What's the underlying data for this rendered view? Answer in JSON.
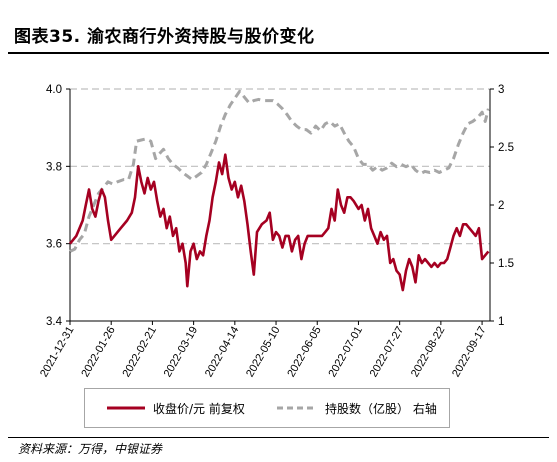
{
  "header": {
    "title": "图表35. 渝农商行外资持股与股价变化"
  },
  "footer": {
    "source": "资料来源：万得，中银证券"
  },
  "colors": {
    "price": "#A50021",
    "holding": "#A6A6A6",
    "grid": "#BFBFBF"
  },
  "chart_data": {
    "type": "line",
    "title": "",
    "x_tick_labels": [
      "2021-12-31",
      "2022-01-26",
      "2022-02-21",
      "2022-03-19",
      "2022-04-14",
      "2022-05-10",
      "2022-06-05",
      "2022-07-01",
      "2022-07-27",
      "2022-08-22",
      "2022-09-17"
    ],
    "y_left": {
      "ylim": [
        3.4,
        4.0
      ],
      "ticks": [
        "3.4",
        "3.6",
        "3.8",
        "4.0"
      ]
    },
    "y_right": {
      "ylim": [
        1,
        3
      ],
      "ticks": [
        "1",
        "1.5",
        "2",
        "2.5",
        "3"
      ]
    },
    "grid": "horizontal-dashed",
    "legend_position": "bottom",
    "series": [
      {
        "name": "收盘价/元 前复权",
        "axis": "left",
        "style": "solid",
        "points": [
          [
            "2021-12-31",
            3.6
          ],
          [
            "2022-01-04",
            3.62
          ],
          [
            "2022-01-06",
            3.64
          ],
          [
            "2022-01-08",
            3.66
          ],
          [
            "2022-01-10",
            3.7
          ],
          [
            "2022-01-12",
            3.74
          ],
          [
            "2022-01-14",
            3.69
          ],
          [
            "2022-01-16",
            3.67
          ],
          [
            "2022-01-18",
            3.71
          ],
          [
            "2022-01-20",
            3.74
          ],
          [
            "2022-01-22",
            3.72
          ],
          [
            "2022-01-24",
            3.66
          ],
          [
            "2022-01-26",
            3.61
          ],
          [
            "2022-01-28",
            3.62
          ],
          [
            "2022-02-01",
            3.64
          ],
          [
            "2022-02-05",
            3.66
          ],
          [
            "2022-02-08",
            3.68
          ],
          [
            "2022-02-10",
            3.72
          ],
          [
            "2022-02-12",
            3.8
          ],
          [
            "2022-02-14",
            3.76
          ],
          [
            "2022-02-16",
            3.73
          ],
          [
            "2022-02-18",
            3.77
          ],
          [
            "2022-02-20",
            3.74
          ],
          [
            "2022-02-22",
            3.76
          ],
          [
            "2022-02-24",
            3.71
          ],
          [
            "2022-02-26",
            3.67
          ],
          [
            "2022-02-28",
            3.69
          ],
          [
            "2022-03-02",
            3.64
          ],
          [
            "2022-03-04",
            3.67
          ],
          [
            "2022-03-06",
            3.62
          ],
          [
            "2022-03-08",
            3.64
          ],
          [
            "2022-03-10",
            3.58
          ],
          [
            "2022-03-12",
            3.6
          ],
          [
            "2022-03-14",
            3.55
          ],
          [
            "2022-03-15",
            3.49
          ],
          [
            "2022-03-17",
            3.58
          ],
          [
            "2022-03-19",
            3.6
          ],
          [
            "2022-03-21",
            3.56
          ],
          [
            "2022-03-23",
            3.58
          ],
          [
            "2022-03-25",
            3.57
          ],
          [
            "2022-03-27",
            3.62
          ],
          [
            "2022-03-29",
            3.66
          ],
          [
            "2022-03-31",
            3.72
          ],
          [
            "2022-04-02",
            3.76
          ],
          [
            "2022-04-04",
            3.81
          ],
          [
            "2022-04-06",
            3.78
          ],
          [
            "2022-04-08",
            3.83
          ],
          [
            "2022-04-10",
            3.77
          ],
          [
            "2022-04-12",
            3.74
          ],
          [
            "2022-04-14",
            3.76
          ],
          [
            "2022-04-16",
            3.72
          ],
          [
            "2022-04-18",
            3.75
          ],
          [
            "2022-04-20",
            3.71
          ],
          [
            "2022-04-22",
            3.65
          ],
          [
            "2022-04-24",
            3.58
          ],
          [
            "2022-04-26",
            3.52
          ],
          [
            "2022-04-28",
            3.63
          ],
          [
            "2022-05-01",
            3.65
          ],
          [
            "2022-05-04",
            3.66
          ],
          [
            "2022-05-06",
            3.68
          ],
          [
            "2022-05-08",
            3.61
          ],
          [
            "2022-05-10",
            3.63
          ],
          [
            "2022-05-12",
            3.62
          ],
          [
            "2022-05-14",
            3.59
          ],
          [
            "2022-05-16",
            3.62
          ],
          [
            "2022-05-18",
            3.62
          ],
          [
            "2022-05-20",
            3.58
          ],
          [
            "2022-05-22",
            3.61
          ],
          [
            "2022-05-24",
            3.62
          ],
          [
            "2022-05-26",
            3.56
          ],
          [
            "2022-05-28",
            3.6
          ],
          [
            "2022-05-30",
            3.62
          ],
          [
            "2022-06-02",
            3.62
          ],
          [
            "2022-06-05",
            3.62
          ],
          [
            "2022-06-08",
            3.62
          ],
          [
            "2022-06-10",
            3.63
          ],
          [
            "2022-06-12",
            3.64
          ],
          [
            "2022-06-14",
            3.69
          ],
          [
            "2022-06-16",
            3.66
          ],
          [
            "2022-06-18",
            3.74
          ],
          [
            "2022-06-20",
            3.7
          ],
          [
            "2022-06-22",
            3.68
          ],
          [
            "2022-06-24",
            3.72
          ],
          [
            "2022-06-26",
            3.72
          ],
          [
            "2022-06-28",
            3.71
          ],
          [
            "2022-07-01",
            3.69
          ],
          [
            "2022-07-03",
            3.7
          ],
          [
            "2022-07-05",
            3.66
          ],
          [
            "2022-07-07",
            3.69
          ],
          [
            "2022-07-09",
            3.64
          ],
          [
            "2022-07-11",
            3.62
          ],
          [
            "2022-07-13",
            3.6
          ],
          [
            "2022-07-15",
            3.63
          ],
          [
            "2022-07-17",
            3.61
          ],
          [
            "2022-07-19",
            3.62
          ],
          [
            "2022-07-21",
            3.55
          ],
          [
            "2022-07-23",
            3.56
          ],
          [
            "2022-07-25",
            3.53
          ],
          [
            "2022-07-27",
            3.52
          ],
          [
            "2022-07-29",
            3.48
          ],
          [
            "2022-07-31",
            3.53
          ],
          [
            "2022-08-02",
            3.56
          ],
          [
            "2022-08-04",
            3.54
          ],
          [
            "2022-08-06",
            3.5
          ],
          [
            "2022-08-08",
            3.57
          ],
          [
            "2022-08-10",
            3.55
          ],
          [
            "2022-08-12",
            3.56
          ],
          [
            "2022-08-14",
            3.55
          ],
          [
            "2022-08-16",
            3.54
          ],
          [
            "2022-08-18",
            3.55
          ],
          [
            "2022-08-20",
            3.54
          ],
          [
            "2022-08-22",
            3.55
          ],
          [
            "2022-08-24",
            3.55
          ],
          [
            "2022-08-26",
            3.56
          ],
          [
            "2022-08-28",
            3.59
          ],
          [
            "2022-08-30",
            3.62
          ],
          [
            "2022-09-01",
            3.64
          ],
          [
            "2022-09-03",
            3.62
          ],
          [
            "2022-09-05",
            3.65
          ],
          [
            "2022-09-07",
            3.65
          ],
          [
            "2022-09-09",
            3.64
          ],
          [
            "2022-09-11",
            3.63
          ],
          [
            "2022-09-13",
            3.62
          ],
          [
            "2022-09-15",
            3.64
          ],
          [
            "2022-09-17",
            3.56
          ],
          [
            "2022-09-19",
            3.57
          ],
          [
            "2022-09-21",
            3.58
          ]
        ]
      },
      {
        "name": "持股数（亿股） 右轴",
        "axis": "right",
        "style": "dashed",
        "points": [
          [
            "2021-12-31",
            1.6
          ],
          [
            "2022-01-03",
            1.62
          ],
          [
            "2022-01-06",
            1.7
          ],
          [
            "2022-01-09",
            1.75
          ],
          [
            "2022-01-12",
            1.9
          ],
          [
            "2022-01-15",
            2.0
          ],
          [
            "2022-01-18",
            2.1
          ],
          [
            "2022-01-21",
            2.15
          ],
          [
            "2022-01-24",
            2.2
          ],
          [
            "2022-01-27",
            2.18
          ],
          [
            "2022-01-30",
            2.2
          ],
          [
            "2022-02-03",
            2.22
          ],
          [
            "2022-02-06",
            2.22
          ],
          [
            "2022-02-09",
            2.35
          ],
          [
            "2022-02-11",
            2.55
          ],
          [
            "2022-02-14",
            2.56
          ],
          [
            "2022-02-17",
            2.57
          ],
          [
            "2022-02-20",
            2.55
          ],
          [
            "2022-02-23",
            2.4
          ],
          [
            "2022-02-26",
            2.45
          ],
          [
            "2022-02-28",
            2.48
          ],
          [
            "2022-03-03",
            2.4
          ],
          [
            "2022-03-06",
            2.35
          ],
          [
            "2022-03-09",
            2.32
          ],
          [
            "2022-03-12",
            2.28
          ],
          [
            "2022-03-15",
            2.25
          ],
          [
            "2022-03-18",
            2.22
          ],
          [
            "2022-03-21",
            2.25
          ],
          [
            "2022-03-24",
            2.28
          ],
          [
            "2022-03-27",
            2.35
          ],
          [
            "2022-03-30",
            2.45
          ],
          [
            "2022-04-02",
            2.55
          ],
          [
            "2022-04-05",
            2.68
          ],
          [
            "2022-04-08",
            2.78
          ],
          [
            "2022-04-11",
            2.86
          ],
          [
            "2022-04-14",
            2.92
          ],
          [
            "2022-04-17",
            2.98
          ],
          [
            "2022-04-20",
            2.93
          ],
          [
            "2022-04-23",
            2.88
          ],
          [
            "2022-04-26",
            2.9
          ],
          [
            "2022-04-29",
            2.91
          ],
          [
            "2022-05-02",
            2.9
          ],
          [
            "2022-05-05",
            2.9
          ],
          [
            "2022-05-08",
            2.9
          ],
          [
            "2022-05-11",
            2.87
          ],
          [
            "2022-05-14",
            2.83
          ],
          [
            "2022-05-17",
            2.78
          ],
          [
            "2022-05-20",
            2.72
          ],
          [
            "2022-05-23",
            2.68
          ],
          [
            "2022-05-26",
            2.65
          ],
          [
            "2022-05-29",
            2.65
          ],
          [
            "2022-06-01",
            2.62
          ],
          [
            "2022-06-04",
            2.68
          ],
          [
            "2022-06-07",
            2.64
          ],
          [
            "2022-06-10",
            2.7
          ],
          [
            "2022-06-13",
            2.72
          ],
          [
            "2022-06-16",
            2.68
          ],
          [
            "2022-06-19",
            2.7
          ],
          [
            "2022-06-22",
            2.62
          ],
          [
            "2022-06-25",
            2.55
          ],
          [
            "2022-06-28",
            2.5
          ],
          [
            "2022-07-01",
            2.4
          ],
          [
            "2022-07-04",
            2.35
          ],
          [
            "2022-07-07",
            2.35
          ],
          [
            "2022-07-10",
            2.3
          ],
          [
            "2022-07-13",
            2.33
          ],
          [
            "2022-07-16",
            2.3
          ],
          [
            "2022-07-19",
            2.32
          ],
          [
            "2022-07-22",
            2.36
          ],
          [
            "2022-07-25",
            2.33
          ],
          [
            "2022-07-28",
            2.35
          ],
          [
            "2022-07-31",
            2.33
          ],
          [
            "2022-08-03",
            2.35
          ],
          [
            "2022-08-06",
            2.3
          ],
          [
            "2022-08-09",
            2.27
          ],
          [
            "2022-08-12",
            2.29
          ],
          [
            "2022-08-15",
            2.28
          ],
          [
            "2022-08-18",
            2.3
          ],
          [
            "2022-08-21",
            2.28
          ],
          [
            "2022-08-24",
            2.3
          ],
          [
            "2022-08-27",
            2.32
          ],
          [
            "2022-08-30",
            2.4
          ],
          [
            "2022-09-02",
            2.52
          ],
          [
            "2022-09-05",
            2.62
          ],
          [
            "2022-09-08",
            2.7
          ],
          [
            "2022-09-11",
            2.72
          ],
          [
            "2022-09-14",
            2.75
          ],
          [
            "2022-09-17",
            2.8
          ],
          [
            "2022-09-19",
            2.72
          ],
          [
            "2022-09-21",
            2.83
          ]
        ]
      }
    ]
  }
}
